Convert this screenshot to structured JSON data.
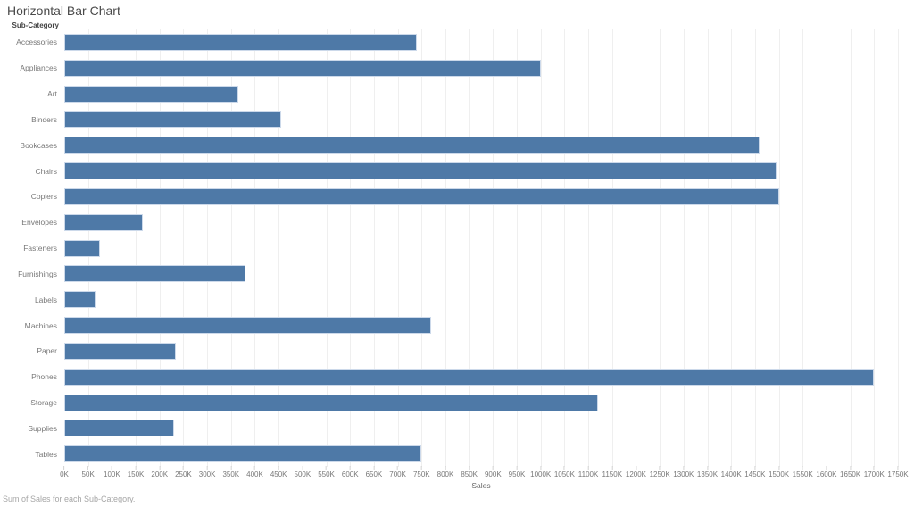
{
  "title": "Horizontal Bar Chart",
  "caption": "Sum of Sales for each Sub-Category.",
  "colors": {
    "bar": "#4e79a7",
    "bar_border": "#ccd9ea",
    "gridline": "#efefef",
    "axis_text": "#787878",
    "title_text": "#4a4a4a"
  },
  "chart_data": {
    "type": "bar",
    "orientation": "horizontal",
    "title": "Horizontal Bar Chart",
    "xlabel": "Sales",
    "ylabel": "Sub-Category",
    "grid": true,
    "legend": "none",
    "xlim": [
      0,
      1750000
    ],
    "x_tick_step": 50000,
    "x_tick_labels": [
      "0K",
      "50K",
      "100K",
      "150K",
      "200K",
      "250K",
      "300K",
      "350K",
      "400K",
      "450K",
      "500K",
      "550K",
      "600K",
      "650K",
      "700K",
      "750K",
      "800K",
      "850K",
      "900K",
      "950K",
      "1000K",
      "1050K",
      "1100K",
      "1150K",
      "1200K",
      "1250K",
      "1300K",
      "1350K",
      "1400K",
      "1450K",
      "1500K",
      "1550K",
      "1600K",
      "1650K",
      "1700K",
      "1750K"
    ],
    "categories": [
      "Accessories",
      "Appliances",
      "Art",
      "Binders",
      "Bookcases",
      "Chairs",
      "Copiers",
      "Envelopes",
      "Fasteners",
      "Furnishings",
      "Labels",
      "Machines",
      "Paper",
      "Phones",
      "Storage",
      "Supplies",
      "Tables"
    ],
    "values": [
      740000,
      1000000,
      365000,
      455000,
      1460000,
      1495000,
      1500000,
      165000,
      75000,
      380000,
      65000,
      770000,
      235000,
      1700000,
      1120000,
      230000,
      750000
    ]
  }
}
